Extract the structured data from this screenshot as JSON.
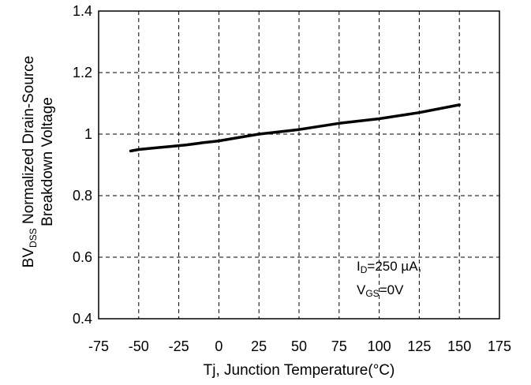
{
  "chart_data": {
    "type": "line",
    "title": "",
    "xlabel": "Tj, Junction Temperature(°C)",
    "ylabel": {
      "line1_main": "BV",
      "line1_sub": "DSS",
      "line1_rest": " Normalized Drain-Source",
      "line2": "Breakdown Voltage"
    },
    "xlim": [
      -75,
      175
    ],
    "ylim": [
      0.4,
      1.4
    ],
    "x_ticks": [
      "-75",
      "-50",
      "-25",
      "0",
      "25",
      "50",
      "75",
      "100",
      "125",
      "150",
      "175"
    ],
    "y_ticks": [
      "0.4",
      "0.6",
      "0.8",
      "1",
      "1.2",
      "1.4"
    ],
    "grid": true,
    "series": [
      {
        "x": [
          -55,
          -50,
          -40,
          -30,
          -20,
          -10,
          0,
          10,
          25,
          50,
          75,
          100,
          125,
          150
        ],
        "y": [
          0.945,
          0.95,
          0.955,
          0.96,
          0.965,
          0.972,
          0.978,
          0.987,
          1.0,
          1.015,
          1.035,
          1.05,
          1.07,
          1.095
        ]
      }
    ],
    "annotation": {
      "line1_main": "I",
      "line1_sub": "D",
      "line1_rest": "=250 µA,",
      "line2_main": "V",
      "line2_sub": "GS",
      "line2_rest": "=0V"
    }
  }
}
